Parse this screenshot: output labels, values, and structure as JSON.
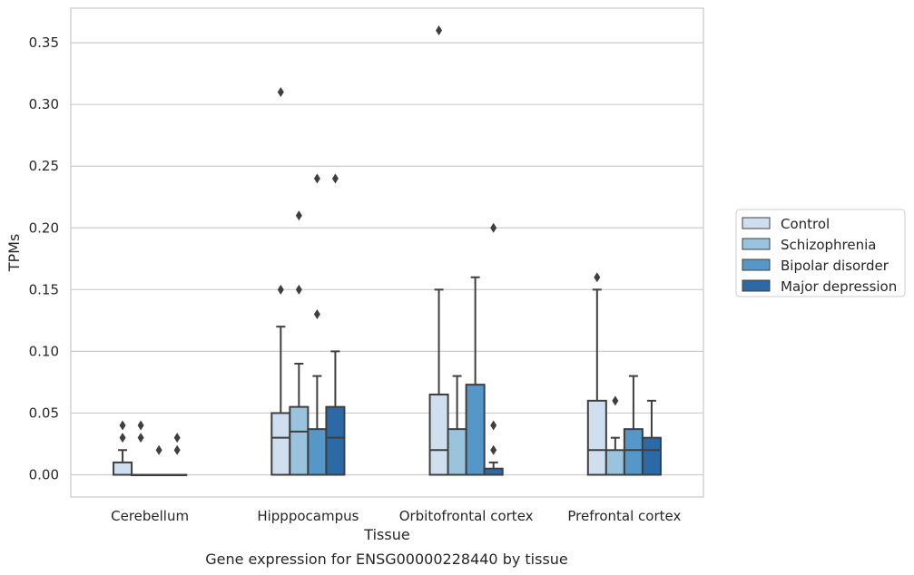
{
  "chart_data": {
    "type": "box",
    "title": "",
    "caption": "Gene expression for ENSG00000228440 by tissue",
    "xlabel": "Tissue",
    "ylabel": "TPMs",
    "ylim": [
      -0.018,
      0.378
    ],
    "yticks": [
      "0.00",
      "0.05",
      "0.10",
      "0.15",
      "0.20",
      "0.25",
      "0.30",
      "0.35"
    ],
    "grid": "horizontal",
    "legend_position": "right",
    "categories": [
      "Cerebellum",
      "Hipppocampus",
      "Orbitofrontal cortex",
      "Prefrontal cortex"
    ],
    "series": [
      {
        "name": "Control",
        "color": "#cfdfef",
        "boxes": [
          {
            "q1": 0.0,
            "median": 0.0,
            "q3": 0.01,
            "whisker_low": 0.0,
            "whisker_high": 0.02,
            "outliers": [
              0.03,
              0.04
            ]
          },
          {
            "q1": 0.0,
            "median": 0.03,
            "q3": 0.05,
            "whisker_low": 0.0,
            "whisker_high": 0.12,
            "outliers": [
              0.15,
              0.31
            ]
          },
          {
            "q1": 0.0,
            "median": 0.02,
            "q3": 0.065,
            "whisker_low": 0.0,
            "whisker_high": 0.15,
            "outliers": [
              0.36
            ]
          },
          {
            "q1": 0.0,
            "median": 0.02,
            "q3": 0.06,
            "whisker_low": 0.0,
            "whisker_high": 0.15,
            "outliers": [
              0.16
            ]
          }
        ]
      },
      {
        "name": "Schizophrenia",
        "color": "#9ac3de",
        "boxes": [
          {
            "q1": 0.0,
            "median": 0.0,
            "q3": 0.0,
            "whisker_low": 0.0,
            "whisker_high": 0.0,
            "outliers": [
              0.03,
              0.04
            ]
          },
          {
            "q1": 0.0,
            "median": 0.035,
            "q3": 0.055,
            "whisker_low": 0.0,
            "whisker_high": 0.09,
            "outliers": [
              0.15,
              0.21
            ]
          },
          {
            "q1": 0.0,
            "median": 0.0,
            "q3": 0.037,
            "whisker_low": 0.0,
            "whisker_high": 0.08,
            "outliers": []
          },
          {
            "q1": 0.0,
            "median": 0.0,
            "q3": 0.02,
            "whisker_low": 0.0,
            "whisker_high": 0.03,
            "outliers": [
              0.06
            ]
          }
        ]
      },
      {
        "name": "Bipolar disorder",
        "color": "#5697c9",
        "boxes": [
          {
            "q1": 0.0,
            "median": 0.0,
            "q3": 0.0,
            "whisker_low": 0.0,
            "whisker_high": 0.0,
            "outliers": [
              0.02
            ]
          },
          {
            "q1": 0.0,
            "median": 0.0,
            "q3": 0.037,
            "whisker_low": 0.0,
            "whisker_high": 0.08,
            "outliers": [
              0.13,
              0.24
            ]
          },
          {
            "q1": 0.0,
            "median": 0.0,
            "q3": 0.073,
            "whisker_low": 0.0,
            "whisker_high": 0.16,
            "outliers": []
          },
          {
            "q1": 0.0,
            "median": 0.02,
            "q3": 0.037,
            "whisker_low": 0.0,
            "whisker_high": 0.08,
            "outliers": []
          }
        ]
      },
      {
        "name": "Major depression",
        "color": "#2b6aa6",
        "boxes": [
          {
            "q1": 0.0,
            "median": 0.0,
            "q3": 0.0,
            "whisker_low": 0.0,
            "whisker_high": 0.0,
            "outliers": [
              0.02,
              0.03
            ]
          },
          {
            "q1": 0.0,
            "median": 0.03,
            "q3": 0.055,
            "whisker_low": 0.0,
            "whisker_high": 0.1,
            "outliers": [
              0.24
            ]
          },
          {
            "q1": 0.0,
            "median": 0.0,
            "q3": 0.005,
            "whisker_low": 0.0,
            "whisker_high": 0.01,
            "outliers": [
              0.02,
              0.04,
              0.2
            ]
          },
          {
            "q1": 0.0,
            "median": 0.02,
            "q3": 0.03,
            "whisker_low": 0.0,
            "whisker_high": 0.06,
            "outliers": []
          }
        ]
      }
    ],
    "colors": {
      "grid": "#cccccc",
      "frame": "#cccccc",
      "edge": "#3f3f3f",
      "text": "#262626"
    }
  }
}
